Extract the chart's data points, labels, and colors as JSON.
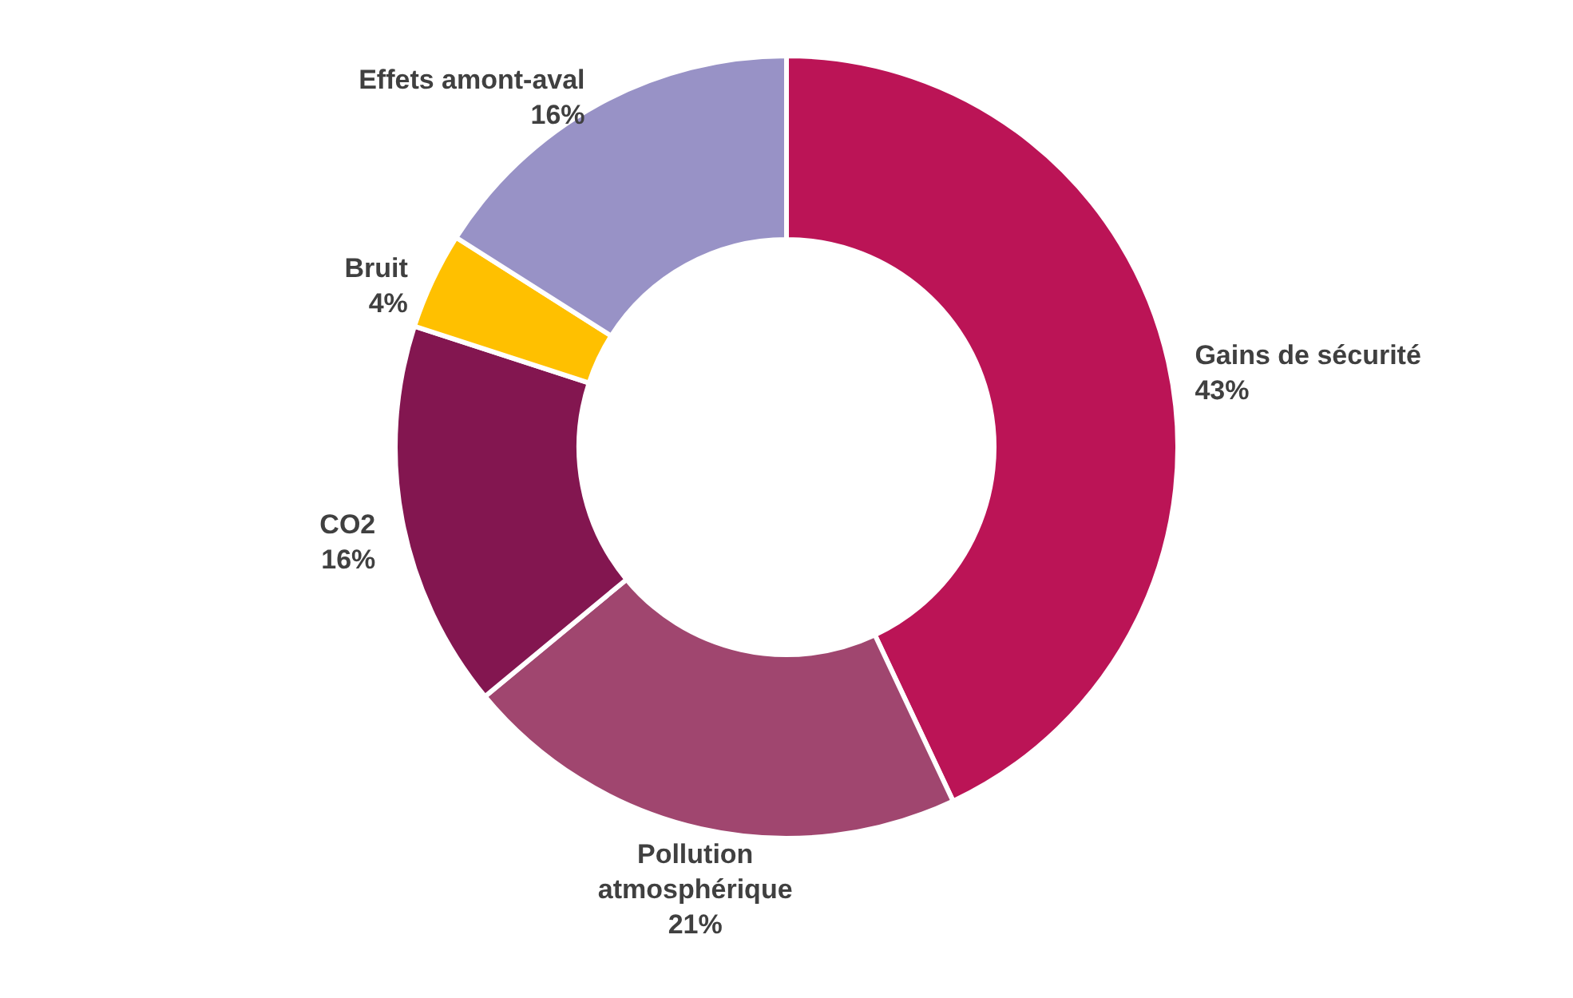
{
  "chart_data": {
    "type": "donut",
    "categories": [
      "Gains de sécurité",
      "Pollution atmosphérique",
      "CO2",
      "Bruit",
      "Effets amont-aval"
    ],
    "values": [
      43,
      21,
      16,
      4,
      16
    ],
    "value_labels": [
      "43%",
      "21%",
      "16%",
      "4%",
      "16%"
    ],
    "colors": [
      "#bb1456",
      "#a0466f",
      "#831650",
      "#ffc000",
      "#9892c6"
    ]
  }
}
